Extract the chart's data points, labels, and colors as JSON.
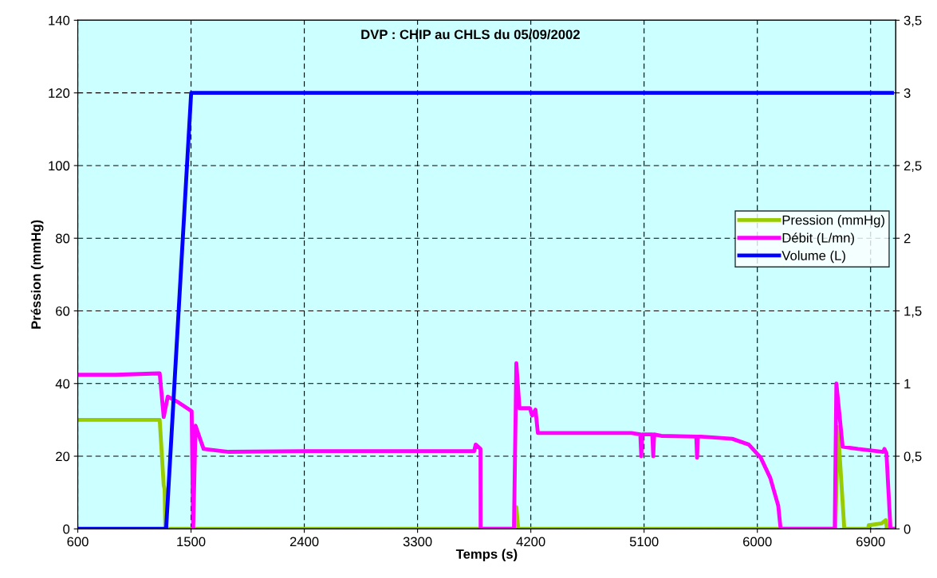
{
  "chart_data": {
    "type": "line",
    "title": "DVP : CHIP au CHLS du 05/09/2002",
    "xlabel": "Temps (s)",
    "ylabel": "Préssion (mmHg)",
    "xlim": [
      600,
      7100
    ],
    "xticks": [
      600,
      1500,
      2400,
      3300,
      4200,
      5100,
      6000,
      6900
    ],
    "ylim": [
      0,
      140
    ],
    "yticks": [
      0,
      20,
      40,
      60,
      80,
      100,
      120,
      140
    ],
    "y2lim": [
      0,
      3.5
    ],
    "y2ticks": [
      {
        "value": 0,
        "label": "0"
      },
      {
        "value": 0.5,
        "label": "0,5"
      },
      {
        "value": 1,
        "label": "1"
      },
      {
        "value": 1.5,
        "label": "1,5"
      },
      {
        "value": 2,
        "label": "2"
      },
      {
        "value": 2.5,
        "label": "2,5"
      },
      {
        "value": 3,
        "label": "3"
      },
      {
        "value": 3.5,
        "label": "3,5"
      }
    ],
    "grid": true,
    "legend": "right",
    "line_style": "solid",
    "marker": "none",
    "series": [
      {
        "name": "Pression (mmHg)",
        "color": "#99cc00",
        "x": [
          600,
          1251,
          1283,
          1290,
          1296,
          4078,
          4085,
          4100,
          6620,
          6640,
          6691,
          6880,
          6885,
          6988,
          7020,
          7030,
          7080
        ],
        "values": [
          30,
          30,
          12,
          11,
          0,
          0,
          6,
          0,
          0,
          28,
          0,
          0,
          1,
          1.5,
          2.4,
          0,
          0
        ]
      },
      {
        "name": "Débit (L/mn)",
        "color": "#ff00ff",
        "axis": "y2",
        "x": [
          600,
          900,
          1240,
          1251,
          1283,
          1315,
          1400,
          1505,
          1517,
          1536,
          1600,
          1800,
          2400,
          3300,
          3750,
          3762,
          3800,
          3801,
          4066,
          4085,
          4110,
          4193,
          4210,
          4237,
          4256,
          5000,
          5070,
          5078,
          5085,
          5165,
          5173,
          5180,
          5236,
          5515,
          5521,
          5527,
          5552,
          5800,
          5932,
          6027,
          6103,
          6166,
          6185,
          6615,
          6628,
          6678,
          6800,
          7000,
          7010,
          7026,
          7058,
          7080
        ],
        "values": [
          1.06,
          1.06,
          1.07,
          1.07,
          0.77,
          0.91,
          0.87,
          0.81,
          0,
          0.71,
          0.55,
          0.53,
          0.535,
          0.535,
          0.535,
          0.58,
          0.55,
          0,
          0,
          1.14,
          0.83,
          0.83,
          0.78,
          0.82,
          0.66,
          0.66,
          0.65,
          0.5,
          0.65,
          0.65,
          0.5,
          0.65,
          0.64,
          0.635,
          0.49,
          0.635,
          0.635,
          0.62,
          0.58,
          0.49,
          0.35,
          0.16,
          0,
          0,
          1.0,
          0.565,
          0.55,
          0.53,
          0.55,
          0.52,
          0,
          0
        ]
      },
      {
        "name": "Volume (L)",
        "color": "#0000ff",
        "axis": "y2",
        "x": [
          600,
          1302,
          1501,
          7070
        ],
        "values": [
          0,
          0,
          3,
          3
        ]
      }
    ]
  }
}
